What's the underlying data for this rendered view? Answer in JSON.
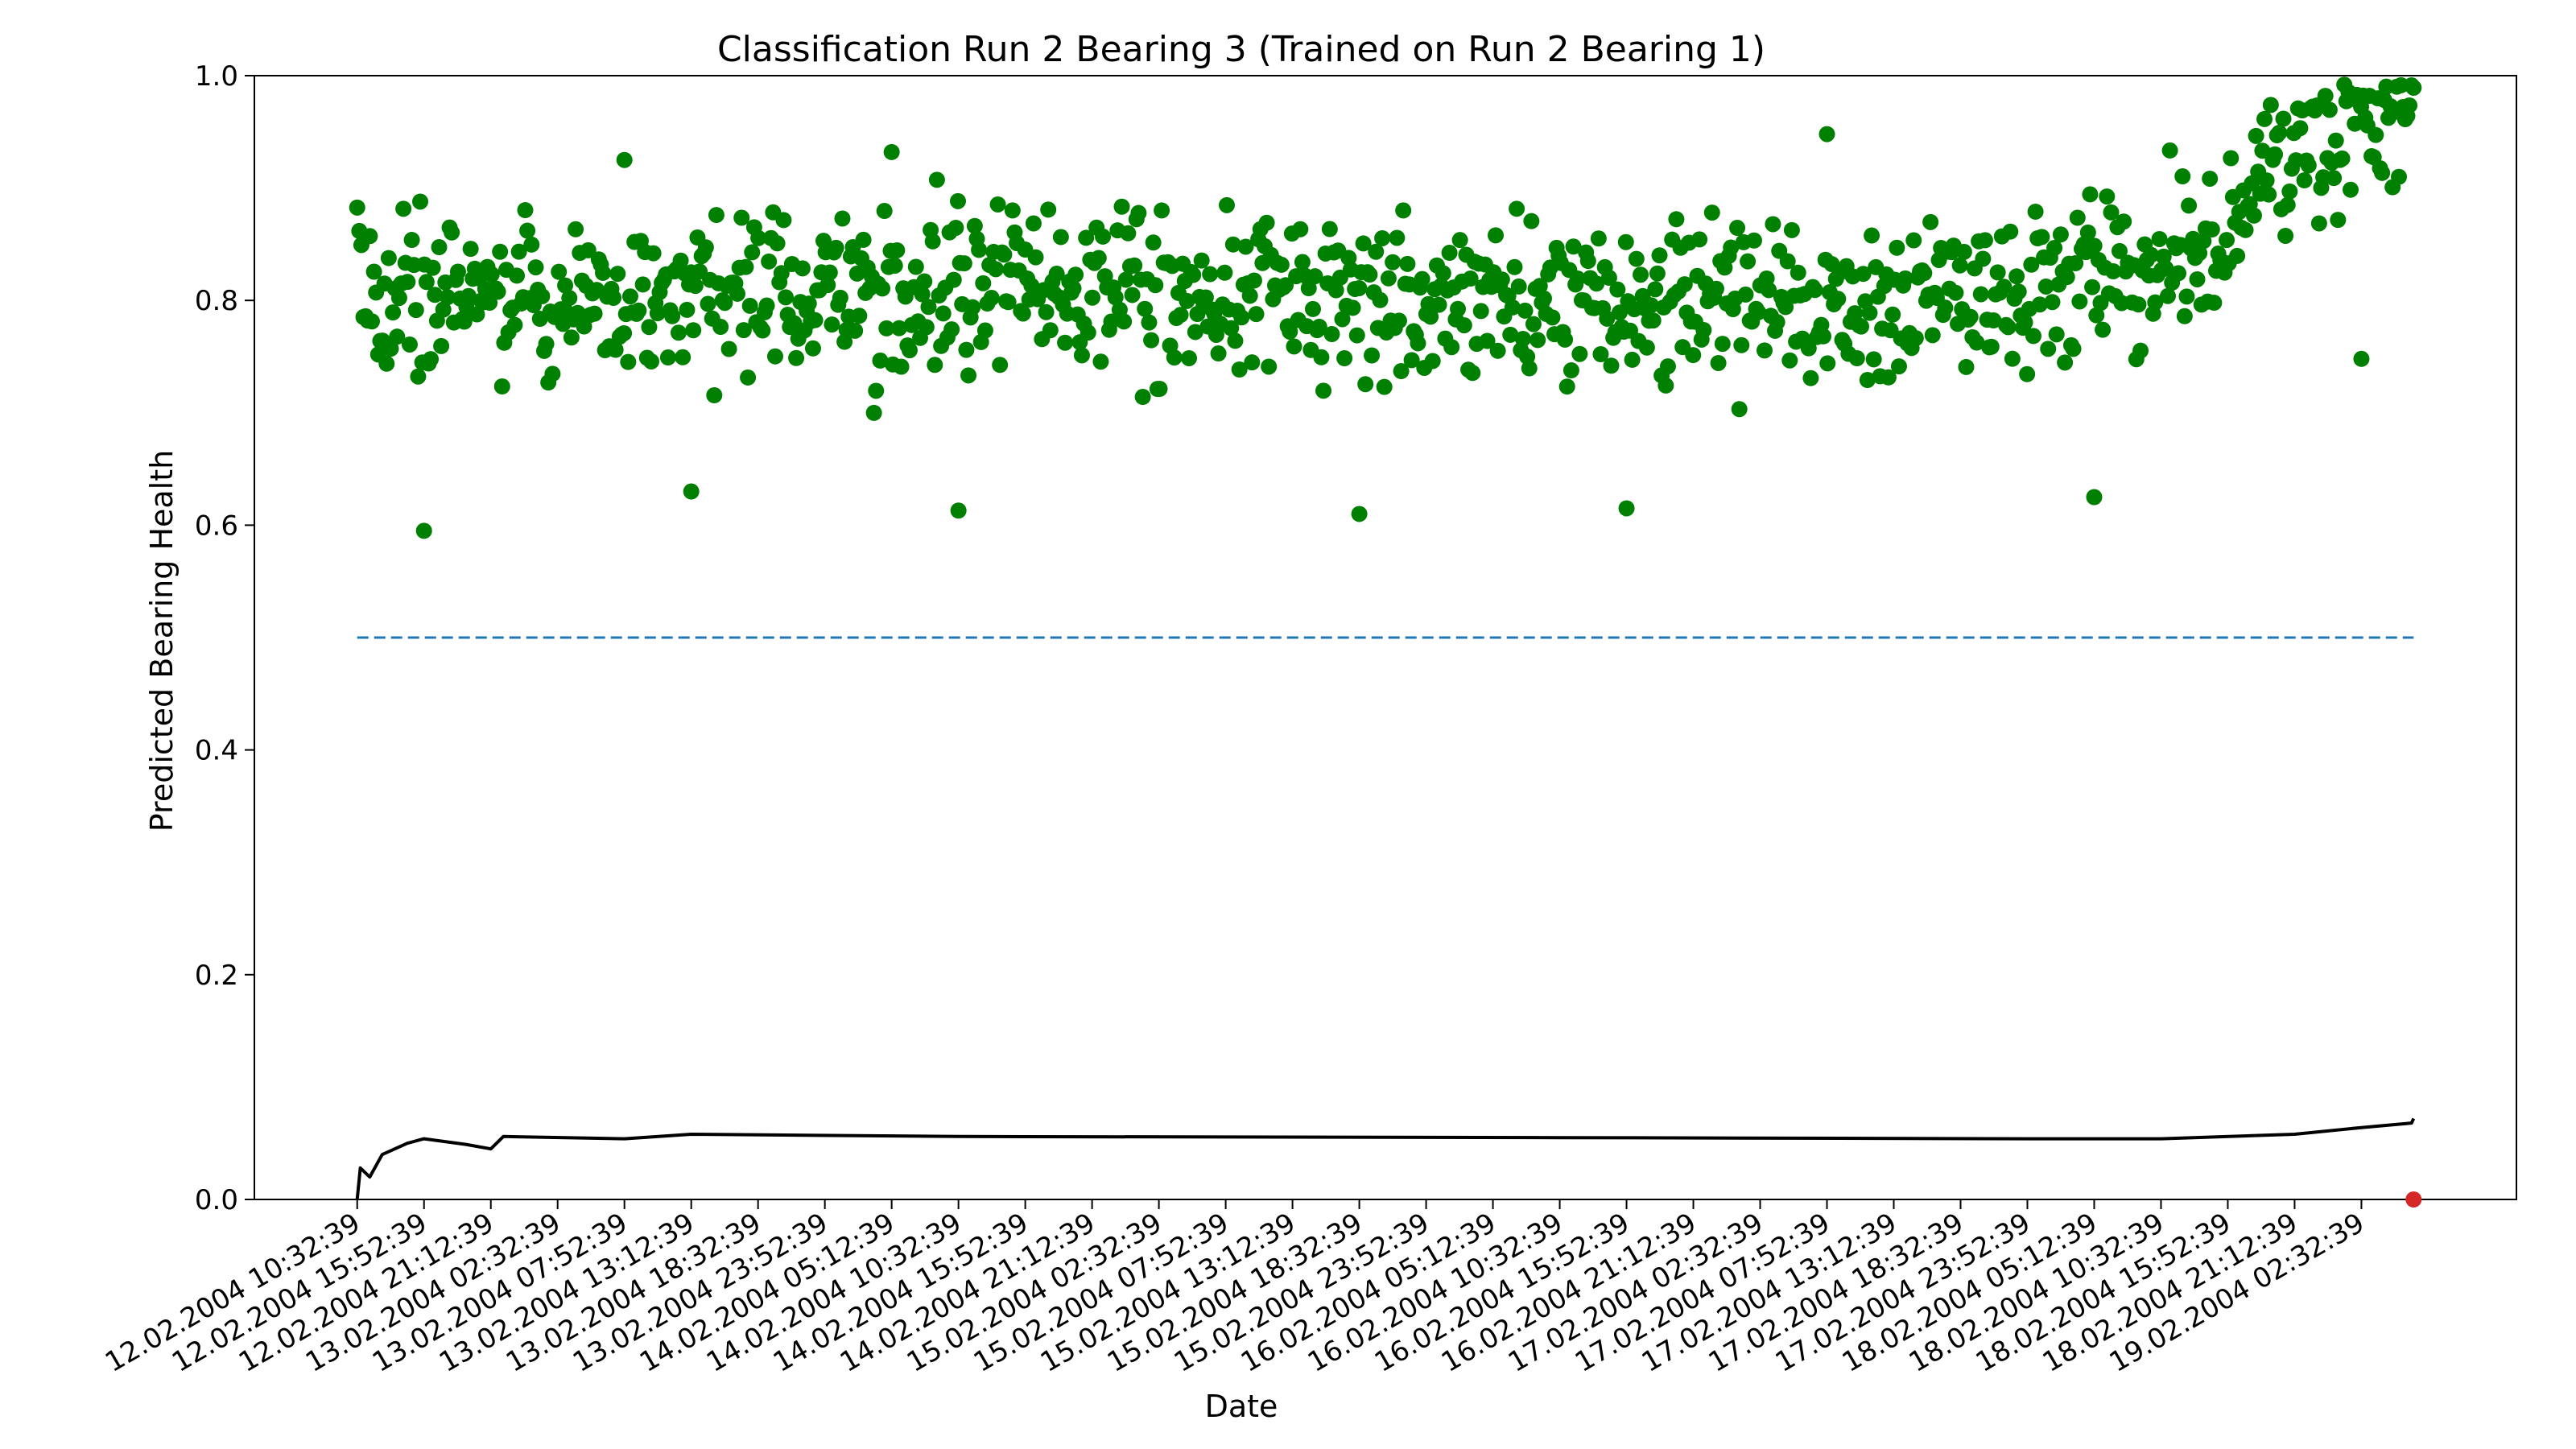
{
  "chart_data": {
    "type": "scatter",
    "title": "Classification Run 2 Bearing 3 (Trained on Run 2 Bearing 1)",
    "xlabel": "Date",
    "ylabel": "Predicted Bearing Health",
    "ylim": [
      0,
      1
    ],
    "yticks": [
      "0.0",
      "0.2",
      "0.4",
      "0.6",
      "0.8",
      "1.0"
    ],
    "x_start": "12.02.2004 10:32:39",
    "x_end": "19.02.2004 06:42:39",
    "xticks": [
      "12.02.2004 10:32:39",
      "12.02.2004 15:52:39",
      "12.02.2004 21:12:39",
      "13.02.2004 02:32:39",
      "13.02.2004 07:52:39",
      "13.02.2004 13:12:39",
      "13.02.2004 18:32:39",
      "13.02.2004 23:52:39",
      "14.02.2004 05:12:39",
      "14.02.2004 10:32:39",
      "14.02.2004 15:52:39",
      "14.02.2004 21:12:39",
      "15.02.2004 02:32:39",
      "15.02.2004 07:52:39",
      "15.02.2004 13:12:39",
      "15.02.2004 18:32:39",
      "15.02.2004 23:52:39",
      "16.02.2004 05:12:39",
      "16.02.2004 10:32:39",
      "16.02.2004 15:52:39",
      "16.02.2004 21:12:39",
      "17.02.2004 02:32:39",
      "17.02.2004 07:52:39",
      "17.02.2004 13:12:39",
      "17.02.2004 18:32:39",
      "17.02.2004 23:52:39",
      "18.02.2004 05:12:39",
      "18.02.2004 10:32:39",
      "18.02.2004 15:52:39",
      "18.02.2004 21:12:39",
      "19.02.2004 02:32:39"
    ],
    "threshold": {
      "y": 0.5,
      "style": "dashed",
      "color": "#1f77b4"
    },
    "scatter_color": "#008000",
    "scatter_profile": [
      [
        "12.02.2004 10:32:39",
        0.81
      ],
      [
        "13.02.2004 02:32:39",
        0.8
      ],
      [
        "14.02.2004 10:32:39",
        0.81
      ],
      [
        "16.02.2004 10:32:39",
        0.8
      ],
      [
        "17.02.2004 23:52:39",
        0.8
      ],
      [
        "18.02.2004 10:32:39",
        0.83
      ],
      [
        "18.02.2004 15:52:39",
        0.87
      ],
      [
        "18.02.2004 21:12:39",
        0.93
      ],
      [
        "19.02.2004 02:32:39",
        0.96
      ],
      [
        "19.02.2004 06:42:39",
        0.95
      ]
    ],
    "scatter_spread": 0.05,
    "scatter_outliers": [
      [
        "12.02.2004 15:52:39",
        0.595
      ],
      [
        "13.02.2004 13:12:39",
        0.63
      ],
      [
        "14.02.2004 10:32:39",
        0.613
      ],
      [
        "15.02.2004 18:32:39",
        0.61
      ],
      [
        "16.02.2004 15:52:39",
        0.615
      ],
      [
        "18.02.2004 05:12:39",
        0.625
      ],
      [
        "17.02.2004 07:52:39",
        0.948
      ],
      [
        "14.02.2004 05:12:39",
        0.932
      ],
      [
        "13.02.2004 07:52:39",
        0.925
      ],
      [
        "19.02.2004 02:32:39",
        0.748
      ]
    ],
    "line_color": "#000000",
    "line_series": [
      [
        "12.02.2004 10:32:39",
        0.0
      ],
      [
        "12.02.2004 10:47:39",
        0.028
      ],
      [
        "12.02.2004 11:32:39",
        0.02
      ],
      [
        "12.02.2004 12:32:39",
        0.04
      ],
      [
        "12.02.2004 14:32:39",
        0.05
      ],
      [
        "12.02.2004 15:52:39",
        0.054
      ],
      [
        "12.02.2004 19:12:39",
        0.049
      ],
      [
        "12.02.2004 21:12:39",
        0.045
      ],
      [
        "12.02.2004 22:12:39",
        0.056
      ],
      [
        "13.02.2004 07:52:39",
        0.054
      ],
      [
        "13.02.2004 13:12:39",
        0.058
      ],
      [
        "14.02.2004 10:32:39",
        0.056
      ],
      [
        "16.02.2004 10:32:39",
        0.055
      ],
      [
        "17.02.2004 23:52:39",
        0.054
      ],
      [
        "18.02.2004 10:32:39",
        0.054
      ],
      [
        "18.02.2004 21:12:39",
        0.058
      ],
      [
        "19.02.2004 02:32:39",
        0.064
      ],
      [
        "19.02.2004 06:32:39",
        0.068
      ],
      [
        "19.02.2004 06:42:39",
        0.072
      ]
    ],
    "marker": {
      "x": "19.02.2004 06:42:39",
      "y": 0.0,
      "color": "#d62728"
    }
  }
}
